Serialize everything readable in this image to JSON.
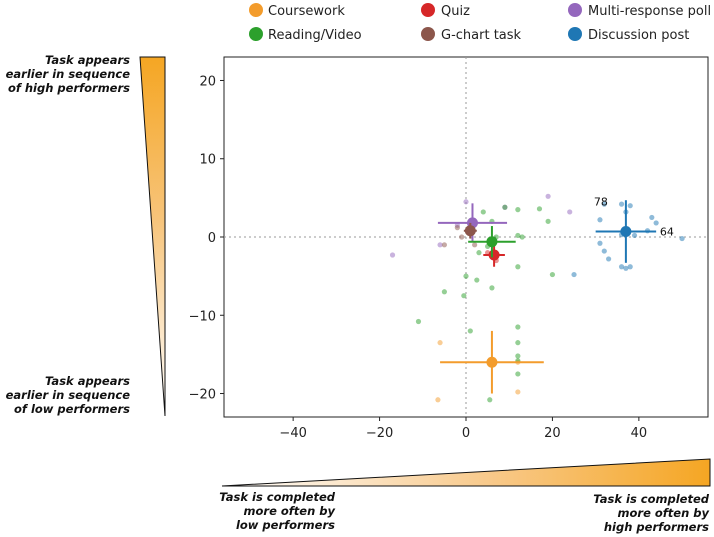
{
  "chart_data": {
    "type": "scatter",
    "xlim": [
      -56,
      56
    ],
    "ylim": [
      -23,
      23
    ],
    "xticks": [
      -40,
      -20,
      0,
      20,
      40
    ],
    "yticks": [
      -20,
      -10,
      0,
      10,
      20
    ],
    "xtick_labels": [
      "−40",
      "−20",
      "0",
      "20",
      "40"
    ],
    "ytick_labels": [
      "−20",
      "−10",
      "0",
      "10",
      "20"
    ],
    "grid": false,
    "reference_lines": [
      0,
      0
    ],
    "legend": {
      "placement": "top",
      "entries": [
        {
          "name": "Coursework",
          "color": "#f39c2c"
        },
        {
          "name": "Quiz",
          "color": "#d62728"
        },
        {
          "name": "Multi-response poll",
          "color": "#9467bd"
        },
        {
          "name": "Reading/Video",
          "color": "#2ca02c"
        },
        {
          "name": "G-chart task",
          "color": "#8c564b"
        },
        {
          "name": "Discussion post",
          "color": "#1f77b4"
        }
      ]
    },
    "y_annotation_top": [
      "Task appears",
      "earlier in sequence",
      "of high performers"
    ],
    "y_annotation_bottom": [
      "Task appears",
      "earlier in sequence",
      "of low performers"
    ],
    "x_annotation_left": [
      "Task is completed",
      "more often by",
      "low performers"
    ],
    "x_annotation_right": [
      "Task is completed",
      "more often by",
      "high performers"
    ],
    "means": [
      {
        "series": "Coursework",
        "x": 6,
        "y": -16,
        "xerr": 12,
        "yerr": 4,
        "color": "#f39c2c"
      },
      {
        "series": "Quiz",
        "x": 6.5,
        "y": -2.3,
        "xerr": 2.5,
        "yerr": 1.5,
        "color": "#d62728"
      },
      {
        "series": "Multi-response poll",
        "x": 1.5,
        "y": 1.8,
        "xerr": 8,
        "yerr": 2.5,
        "color": "#9467bd"
      },
      {
        "series": "Reading/Video",
        "x": 6,
        "y": -0.6,
        "xerr": 5.5,
        "yerr": 2,
        "color": "#2ca02c"
      },
      {
        "series": "G-chart task",
        "x": 1,
        "y": 0.8,
        "xerr": 1.5,
        "yerr": 1,
        "color": "#8c564b"
      },
      {
        "series": "Discussion post",
        "x": 37,
        "y": 0.7,
        "xerr": 7,
        "yerr": 4,
        "color": "#1f77b4",
        "labels": [
          "78",
          "64"
        ]
      }
    ],
    "series": [
      {
        "name": "Coursework",
        "color": "#f39c2c",
        "points": [
          [
            -6,
            -13.5
          ],
          [
            -6.5,
            -20.8
          ],
          [
            12,
            -19.8
          ],
          [
            12,
            -16
          ]
        ]
      },
      {
        "name": "Quiz",
        "color": "#d62728",
        "points": [
          [
            5,
            -2
          ],
          [
            6,
            -2.5
          ],
          [
            7,
            -3
          ]
        ]
      },
      {
        "name": "Multi-response poll",
        "color": "#9467bd",
        "points": [
          [
            -17,
            -2.3
          ],
          [
            -6,
            -1
          ],
          [
            -2,
            1.5
          ],
          [
            0,
            4.5
          ],
          [
            19,
            5.2
          ],
          [
            24,
            3.2
          ],
          [
            9,
            3.8
          ]
        ]
      },
      {
        "name": "Reading/Video",
        "color": "#2ca02c",
        "points": [
          [
            -5,
            -7
          ],
          [
            -0.5,
            -7.5
          ],
          [
            -11,
            -10.8
          ],
          [
            1,
            -12
          ],
          [
            5.5,
            -20.8
          ],
          [
            4,
            3.2
          ],
          [
            9,
            3.8
          ],
          [
            12,
            3.5
          ],
          [
            17,
            3.6
          ],
          [
            19,
            2
          ],
          [
            6,
            2
          ],
          [
            7,
            0
          ],
          [
            12,
            0.2
          ],
          [
            13,
            0
          ],
          [
            5,
            -1.2
          ],
          [
            3,
            -2
          ],
          [
            12,
            -3.8
          ],
          [
            20,
            -4.8
          ],
          [
            2.5,
            -5.5
          ],
          [
            0,
            -5
          ],
          [
            6,
            -6.5
          ],
          [
            12,
            -11.5
          ],
          [
            12,
            -13.5
          ],
          [
            12,
            -15.2
          ],
          [
            12,
            -15.8
          ],
          [
            12,
            -17.5
          ]
        ]
      },
      {
        "name": "G-chart task",
        "color": "#8c564b",
        "points": [
          [
            -2,
            1.2
          ],
          [
            -1,
            0
          ],
          [
            2,
            -1
          ],
          [
            -5,
            -1
          ]
        ]
      },
      {
        "name": "Discussion post",
        "color": "#1f77b4",
        "points": [
          [
            31,
            2.2
          ],
          [
            32,
            4.2
          ],
          [
            36,
            4.2
          ],
          [
            37,
            3.2
          ],
          [
            38,
            4
          ],
          [
            43,
            2.5
          ],
          [
            44,
            1.8
          ],
          [
            42,
            0.8
          ],
          [
            39,
            0.2
          ],
          [
            36,
            0.3
          ],
          [
            31,
            -0.8
          ],
          [
            32,
            -1.8
          ],
          [
            33,
            -2.8
          ],
          [
            37,
            -4
          ],
          [
            38,
            -3.8
          ],
          [
            36,
            -3.8
          ],
          [
            50,
            -0.2
          ],
          [
            25,
            -4.8
          ]
        ]
      }
    ]
  }
}
